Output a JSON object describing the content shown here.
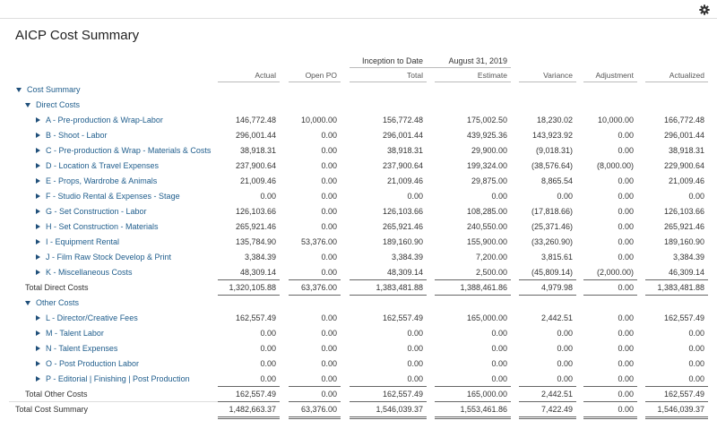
{
  "header": {
    "title": "AICP Cost Summary"
  },
  "table": {
    "group_headers": [
      "Inception to Date",
      "August 31, 2019"
    ],
    "columns": [
      "Actual",
      "Open PO",
      "Total",
      "Estimate",
      "Variance",
      "Adjustment",
      "Actualized"
    ],
    "root": "Cost Summary",
    "sections": [
      {
        "name": "Direct Costs",
        "rows": [
          {
            "label": "A - Pre-production & Wrap-Labor",
            "values": [
              "146,772.48",
              "10,000.00",
              "156,772.48",
              "175,002.50",
              "18,230.02",
              "10,000.00",
              "166,772.48"
            ]
          },
          {
            "label": "B - Shoot - Labor",
            "values": [
              "296,001.44",
              "0.00",
              "296,001.44",
              "439,925.36",
              "143,923.92",
              "0.00",
              "296,001.44"
            ]
          },
          {
            "label": "C - Pre-production & Wrap - Materials & Costs",
            "values": [
              "38,918.31",
              "0.00",
              "38,918.31",
              "29,900.00",
              "(9,018.31)",
              "0.00",
              "38,918.31"
            ]
          },
          {
            "label": "D - Location & Travel Expenses",
            "values": [
              "237,900.64",
              "0.00",
              "237,900.64",
              "199,324.00",
              "(38,576.64)",
              "(8,000.00)",
              "229,900.64"
            ]
          },
          {
            "label": "E - Props, Wardrobe & Animals",
            "values": [
              "21,009.46",
              "0.00",
              "21,009.46",
              "29,875.00",
              "8,865.54",
              "0.00",
              "21,009.46"
            ]
          },
          {
            "label": "F - Studio Rental & Expenses - Stage",
            "values": [
              "0.00",
              "0.00",
              "0.00",
              "0.00",
              "0.00",
              "0.00",
              "0.00"
            ]
          },
          {
            "label": "G - Set Construction - Labor",
            "values": [
              "126,103.66",
              "0.00",
              "126,103.66",
              "108,285.00",
              "(17,818.66)",
              "0.00",
              "126,103.66"
            ]
          },
          {
            "label": "H - Set Construction - Materials",
            "values": [
              "265,921.46",
              "0.00",
              "265,921.46",
              "240,550.00",
              "(25,371.46)",
              "0.00",
              "265,921.46"
            ]
          },
          {
            "label": "I - Equipment Rental",
            "values": [
              "135,784.90",
              "53,376.00",
              "189,160.90",
              "155,900.00",
              "(33,260.90)",
              "0.00",
              "189,160.90"
            ]
          },
          {
            "label": "J - Film Raw Stock Develop & Print",
            "values": [
              "3,384.39",
              "0.00",
              "3,384.39",
              "7,200.00",
              "3,815.61",
              "0.00",
              "3,384.39"
            ]
          },
          {
            "label": "K - Miscellaneous Costs",
            "values": [
              "48,309.14",
              "0.00",
              "48,309.14",
              "2,500.00",
              "(45,809.14)",
              "(2,000.00)",
              "46,309.14"
            ]
          }
        ],
        "total": {
          "label": "Total Direct Costs",
          "values": [
            "1,320,105.88",
            "63,376.00",
            "1,383,481.88",
            "1,388,461.86",
            "4,979.98",
            "0.00",
            "1,383,481.88"
          ]
        }
      },
      {
        "name": "Other Costs",
        "rows": [
          {
            "label": "L - Director/Creative Fees",
            "values": [
              "162,557.49",
              "0.00",
              "162,557.49",
              "165,000.00",
              "2,442.51",
              "0.00",
              "162,557.49"
            ]
          },
          {
            "label": "M - Talent Labor",
            "values": [
              "0.00",
              "0.00",
              "0.00",
              "0.00",
              "0.00",
              "0.00",
              "0.00"
            ]
          },
          {
            "label": "N - Talent Expenses",
            "values": [
              "0.00",
              "0.00",
              "0.00",
              "0.00",
              "0.00",
              "0.00",
              "0.00"
            ]
          },
          {
            "label": "O - Post Production Labor",
            "values": [
              "0.00",
              "0.00",
              "0.00",
              "0.00",
              "0.00",
              "0.00",
              "0.00"
            ]
          },
          {
            "label": "P - Editorial | Finishing | Post Production",
            "values": [
              "0.00",
              "0.00",
              "0.00",
              "0.00",
              "0.00",
              "0.00",
              "0.00"
            ]
          }
        ],
        "total": {
          "label": "Total Other Costs",
          "values": [
            "162,557.49",
            "0.00",
            "162,557.49",
            "165,000.00",
            "2,442.51",
            "0.00",
            "162,557.49"
          ]
        }
      }
    ],
    "grand_total": {
      "label": "Total Cost Summary",
      "values": [
        "1,482,663.37",
        "63,376.00",
        "1,546,039.37",
        "1,553,461.86",
        "7,422.49",
        "0.00",
        "1,546,039.37"
      ]
    }
  }
}
